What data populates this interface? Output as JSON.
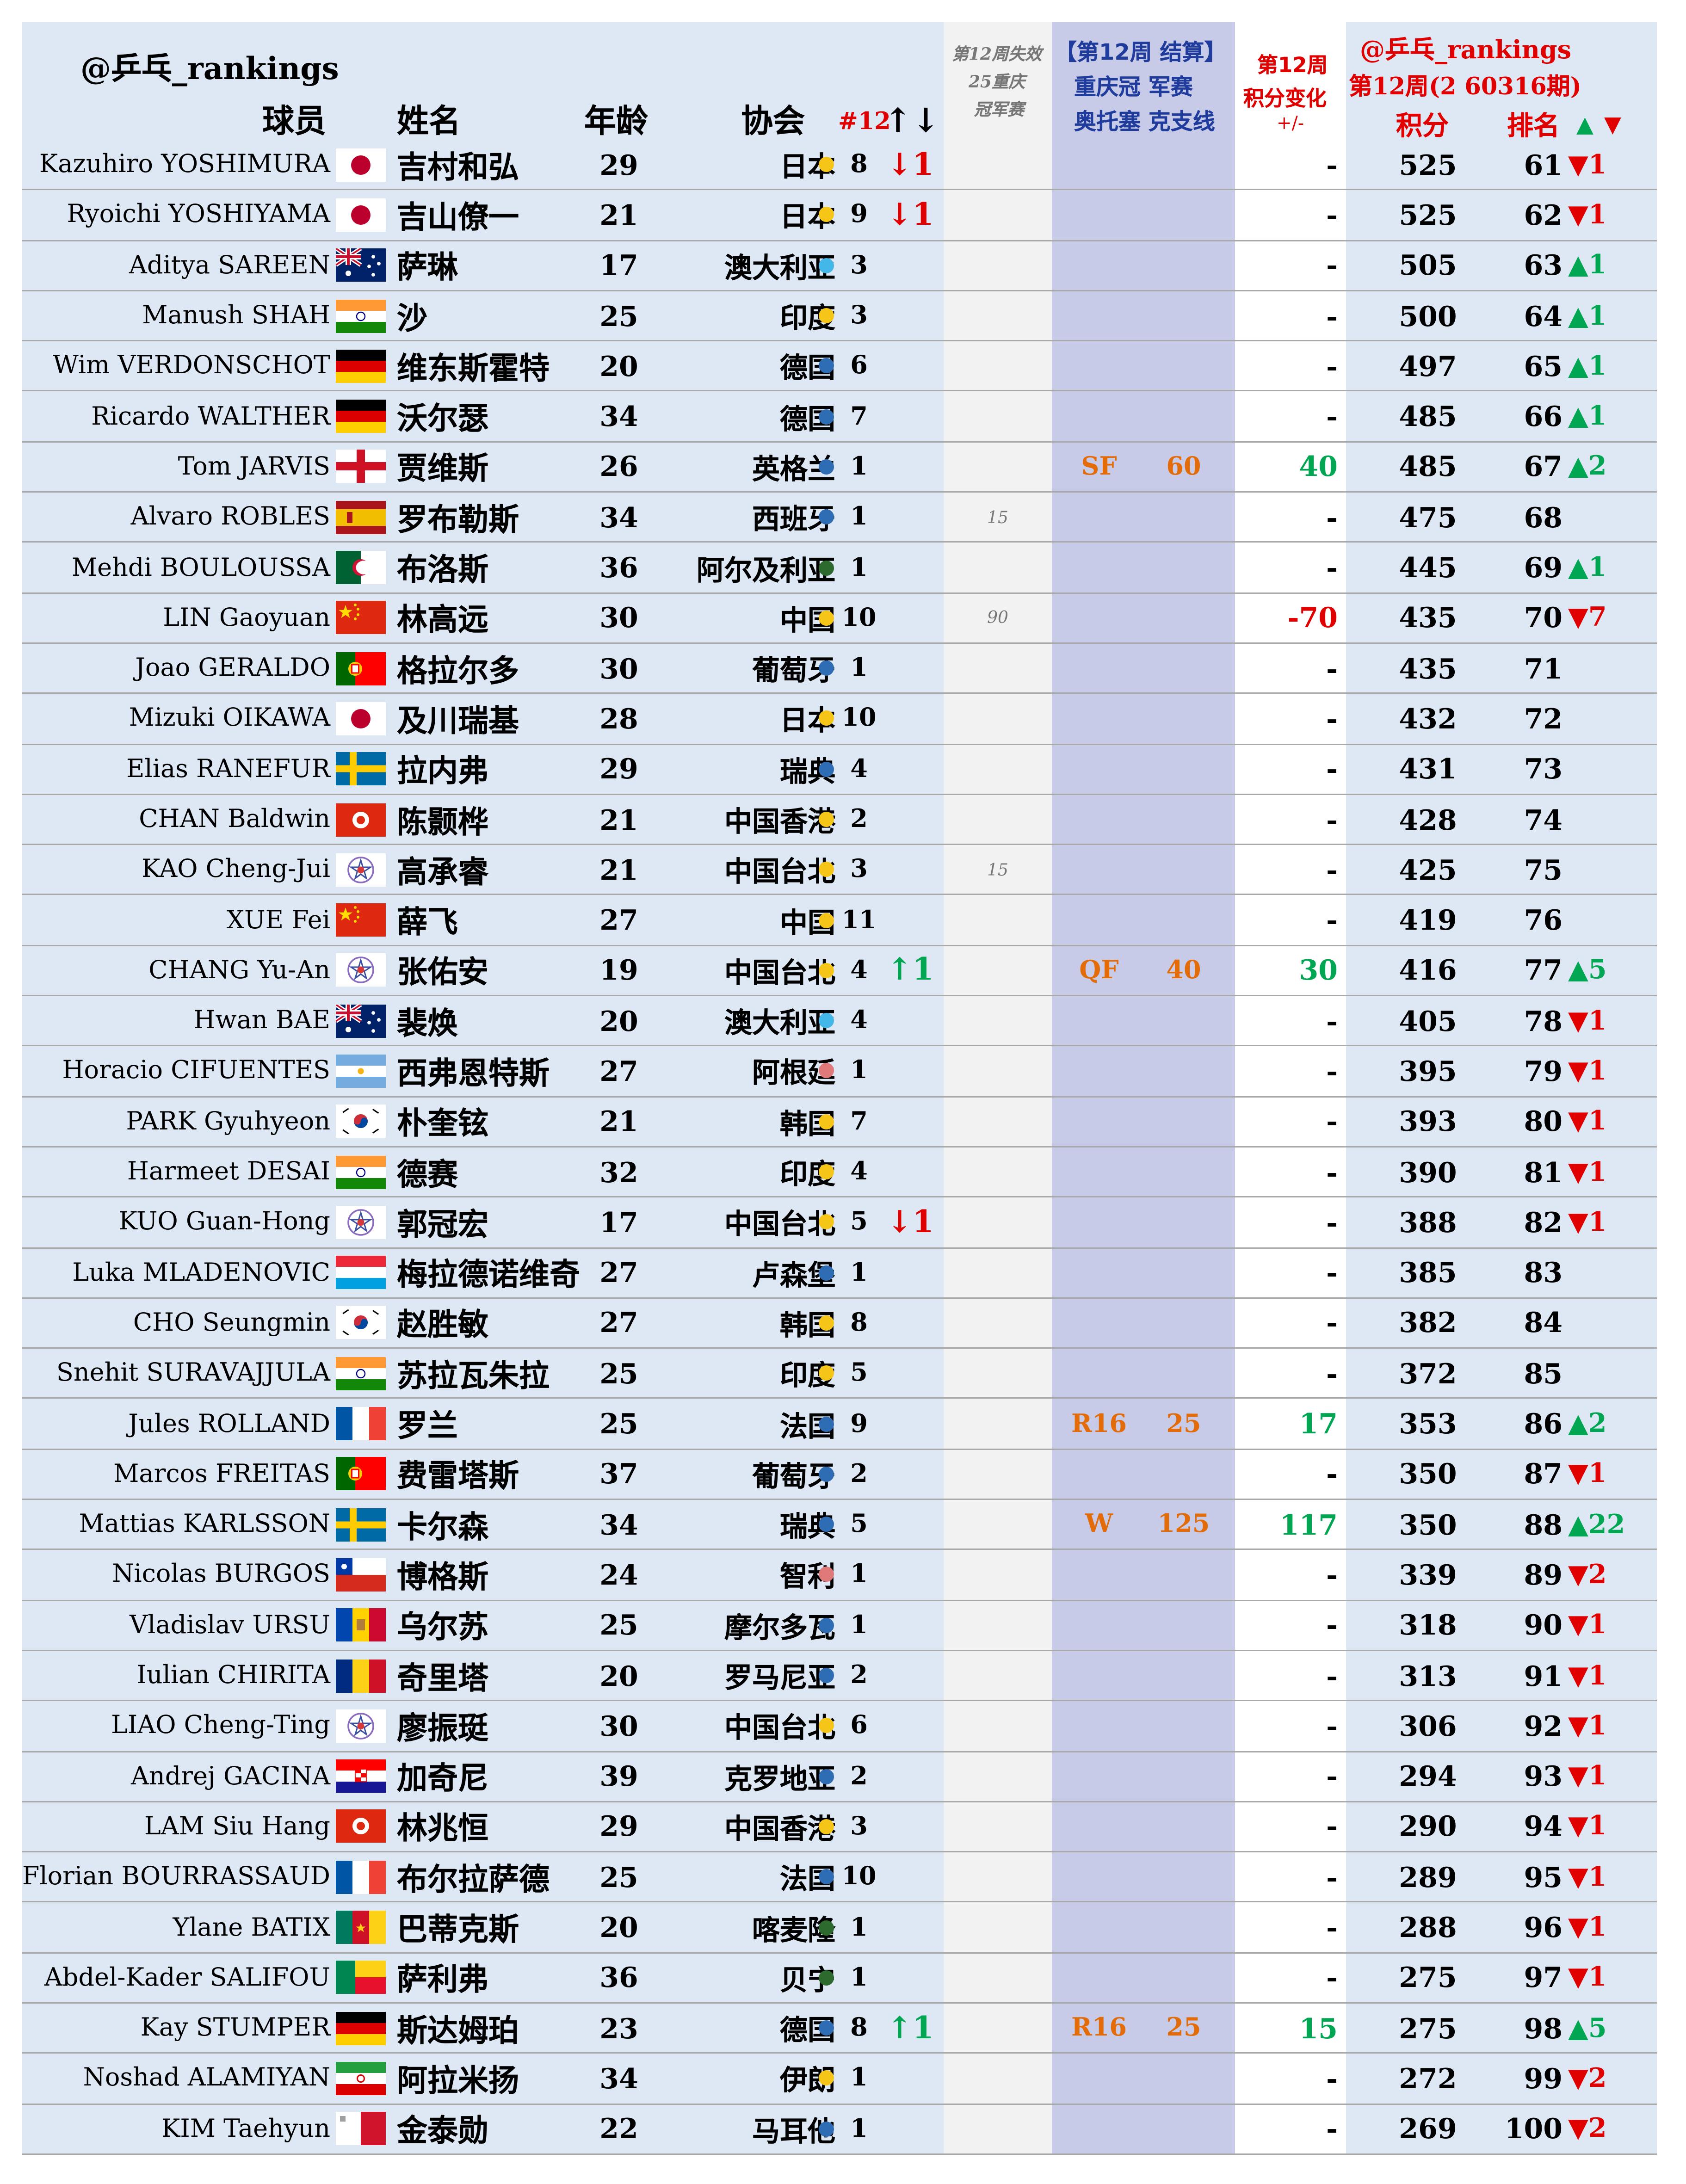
{
  "header": {
    "handle": "@乒乓_rankings",
    "col_player": "球员",
    "col_name": "姓名",
    "col_age": "年龄",
    "col_assoc": "协会",
    "col_rank12": "#12",
    "col_rank12_arrows": "↑↓",
    "lost_title_1": "第12周失效",
    "lost_title_2": "25重庆",
    "lost_title_3": "冠军赛",
    "result_title_1": "【第12周 结算】",
    "result_title_2": "重庆冠 军赛",
    "result_title_3": "奥托塞 克支线",
    "change_title_1": "第12周",
    "change_title_2": "积分变化",
    "change_title_3": "+/-",
    "right_handle": "@乒乓_rankings",
    "right_week": "第12周(2 60316期)",
    "col_points": "积分",
    "col_rank": "排名",
    "col_rank_arrows": "▲ ▼"
  },
  "colors": {
    "up": "#00a651",
    "down": "#e00000",
    "orange": "#e36c09",
    "blue_text": "#1f3c9c",
    "red_text": "#e00000",
    "dot_yellow": "#f5c518",
    "dot_blue": "#2e6db4",
    "dot_lightblue": "#43b8e8",
    "dot_green": "#2d6a2d",
    "dot_pink": "#e07a7a"
  },
  "rows": [
    {
      "en": "Kazuhiro YOSHIMURA",
      "flag": "jp",
      "cn": "吉村和弘",
      "age": "29",
      "assoc": "日本",
      "dot": "yellow",
      "n": "8",
      "mv": "↓1",
      "mvdir": "down",
      "lost": "",
      "round": "",
      "pts": "",
      "chg": "-",
      "chgdir": "",
      "score": "525",
      "rank": "61",
      "rmv": "▼1",
      "rmvdir": "down"
    },
    {
      "en": "Ryoichi YOSHIYAMA",
      "flag": "jp",
      "cn": "吉山僚一",
      "age": "21",
      "assoc": "日本",
      "dot": "yellow",
      "n": "9",
      "mv": "↓1",
      "mvdir": "down",
      "lost": "",
      "round": "",
      "pts": "",
      "chg": "-",
      "chgdir": "",
      "score": "525",
      "rank": "62",
      "rmv": "▼1",
      "rmvdir": "down"
    },
    {
      "en": "Aditya SAREEN",
      "flag": "au",
      "cn": "萨琳",
      "age": "17",
      "assoc": "澳大利亚",
      "dot": "lightblue",
      "n": "3",
      "mv": "",
      "mvdir": "",
      "lost": "",
      "round": "",
      "pts": "",
      "chg": "-",
      "chgdir": "",
      "score": "505",
      "rank": "63",
      "rmv": "▲1",
      "rmvdir": "up"
    },
    {
      "en": "Manush SHAH",
      "flag": "in",
      "cn": "沙",
      "age": "25",
      "assoc": "印度",
      "dot": "yellow",
      "n": "3",
      "mv": "",
      "mvdir": "",
      "lost": "",
      "round": "",
      "pts": "",
      "chg": "-",
      "chgdir": "",
      "score": "500",
      "rank": "64",
      "rmv": "▲1",
      "rmvdir": "up"
    },
    {
      "en": "Wim VERDONSCHOT",
      "flag": "de",
      "cn": "维东斯霍特",
      "age": "20",
      "assoc": "德国",
      "dot": "blue",
      "n": "6",
      "mv": "",
      "mvdir": "",
      "lost": "",
      "round": "",
      "pts": "",
      "chg": "-",
      "chgdir": "",
      "score": "497",
      "rank": "65",
      "rmv": "▲1",
      "rmvdir": "up"
    },
    {
      "en": "Ricardo WALTHER",
      "flag": "de",
      "cn": "沃尔瑟",
      "age": "34",
      "assoc": "德国",
      "dot": "blue",
      "n": "7",
      "mv": "",
      "mvdir": "",
      "lost": "",
      "round": "",
      "pts": "",
      "chg": "-",
      "chgdir": "",
      "score": "485",
      "rank": "66",
      "rmv": "▲1",
      "rmvdir": "up"
    },
    {
      "en": "Tom JARVIS",
      "flag": "en",
      "cn": "贾维斯",
      "age": "26",
      "assoc": "英格兰",
      "dot": "blue",
      "n": "1",
      "mv": "",
      "mvdir": "",
      "lost": "",
      "round": "SF",
      "pts": "60",
      "chg": "40",
      "chgdir": "up",
      "score": "485",
      "rank": "67",
      "rmv": "▲2",
      "rmvdir": "up"
    },
    {
      "en": "Alvaro ROBLES",
      "flag": "es",
      "cn": "罗布勒斯",
      "age": "34",
      "assoc": "西班牙",
      "dot": "blue",
      "n": "1",
      "mv": "",
      "mvdir": "",
      "lost": "15",
      "round": "",
      "pts": "",
      "chg": "-",
      "chgdir": "",
      "score": "475",
      "rank": "68",
      "rmv": "",
      "rmvdir": ""
    },
    {
      "en": "Mehdi BOULOUSSA",
      "flag": "dz",
      "cn": "布洛斯",
      "age": "36",
      "assoc": "阿尔及利亚",
      "dot": "green",
      "n": "1",
      "mv": "",
      "mvdir": "",
      "lost": "",
      "round": "",
      "pts": "",
      "chg": "-",
      "chgdir": "",
      "score": "445",
      "rank": "69",
      "rmv": "▲1",
      "rmvdir": "up"
    },
    {
      "en": "LIN Gaoyuan",
      "flag": "cn",
      "cn": "林高远",
      "age": "30",
      "assoc": "中国",
      "dot": "yellow",
      "n": "10",
      "mv": "",
      "mvdir": "",
      "lost": "90",
      "round": "",
      "pts": "",
      "chg": "-70",
      "chgdir": "down",
      "score": "435",
      "rank": "70",
      "rmv": "▼7",
      "rmvdir": "down"
    },
    {
      "en": "Joao GERALDO",
      "flag": "pt",
      "cn": "格拉尔多",
      "age": "30",
      "assoc": "葡萄牙",
      "dot": "blue",
      "n": "1",
      "mv": "",
      "mvdir": "",
      "lost": "",
      "round": "",
      "pts": "",
      "chg": "-",
      "chgdir": "",
      "score": "435",
      "rank": "71",
      "rmv": "",
      "rmvdir": ""
    },
    {
      "en": "Mizuki OIKAWA",
      "flag": "jp",
      "cn": "及川瑞基",
      "age": "28",
      "assoc": "日本",
      "dot": "yellow",
      "n": "10",
      "mv": "",
      "mvdir": "",
      "lost": "",
      "round": "",
      "pts": "",
      "chg": "-",
      "chgdir": "",
      "score": "432",
      "rank": "72",
      "rmv": "",
      "rmvdir": ""
    },
    {
      "en": "Elias RANEFUR",
      "flag": "se",
      "cn": "拉内弗",
      "age": "29",
      "assoc": "瑞典",
      "dot": "blue",
      "n": "4",
      "mv": "",
      "mvdir": "",
      "lost": "",
      "round": "",
      "pts": "",
      "chg": "-",
      "chgdir": "",
      "score": "431",
      "rank": "73",
      "rmv": "",
      "rmvdir": ""
    },
    {
      "en": "CHAN Baldwin",
      "flag": "hk",
      "cn": "陈颢桦",
      "age": "21",
      "assoc": "中国香港",
      "dot": "yellow",
      "n": "2",
      "mv": "",
      "mvdir": "",
      "lost": "",
      "round": "",
      "pts": "",
      "chg": "-",
      "chgdir": "",
      "score": "428",
      "rank": "74",
      "rmv": "",
      "rmvdir": ""
    },
    {
      "en": "KAO Cheng-Jui",
      "flag": "tpe",
      "cn": "高承睿",
      "age": "21",
      "assoc": "中国台北",
      "dot": "yellow",
      "n": "3",
      "mv": "",
      "mvdir": "",
      "lost": "15",
      "round": "",
      "pts": "",
      "chg": "-",
      "chgdir": "",
      "score": "425",
      "rank": "75",
      "rmv": "",
      "rmvdir": ""
    },
    {
      "en": "XUE Fei",
      "flag": "cn",
      "cn": "薛飞",
      "age": "27",
      "assoc": "中国",
      "dot": "yellow",
      "n": "11",
      "mv": "",
      "mvdir": "",
      "lost": "",
      "round": "",
      "pts": "",
      "chg": "-",
      "chgdir": "",
      "score": "419",
      "rank": "76",
      "rmv": "",
      "rmvdir": ""
    },
    {
      "en": "CHANG Yu-An",
      "flag": "tpe",
      "cn": "张佑安",
      "age": "19",
      "assoc": "中国台北",
      "dot": "yellow",
      "n": "4",
      "mv": "↑1",
      "mvdir": "up",
      "lost": "",
      "round": "QF",
      "pts": "40",
      "chg": "30",
      "chgdir": "up",
      "score": "416",
      "rank": "77",
      "rmv": "▲5",
      "rmvdir": "up"
    },
    {
      "en": "Hwan BAE",
      "flag": "au",
      "cn": "裴焕",
      "age": "20",
      "assoc": "澳大利亚",
      "dot": "lightblue",
      "n": "4",
      "mv": "",
      "mvdir": "",
      "lost": "",
      "round": "",
      "pts": "",
      "chg": "-",
      "chgdir": "",
      "score": "405",
      "rank": "78",
      "rmv": "▼1",
      "rmvdir": "down"
    },
    {
      "en": "Horacio CIFUENTES",
      "flag": "ar",
      "cn": "西弗恩特斯",
      "age": "27",
      "assoc": "阿根廷",
      "dot": "pink",
      "n": "1",
      "mv": "",
      "mvdir": "",
      "lost": "",
      "round": "",
      "pts": "",
      "chg": "-",
      "chgdir": "",
      "score": "395",
      "rank": "79",
      "rmv": "▼1",
      "rmvdir": "down"
    },
    {
      "en": "PARK Gyuhyeon",
      "flag": "kr",
      "cn": "朴奎铉",
      "age": "21",
      "assoc": "韩国",
      "dot": "yellow",
      "n": "7",
      "mv": "",
      "mvdir": "",
      "lost": "",
      "round": "",
      "pts": "",
      "chg": "-",
      "chgdir": "",
      "score": "393",
      "rank": "80",
      "rmv": "▼1",
      "rmvdir": "down"
    },
    {
      "en": "Harmeet DESAI",
      "flag": "in",
      "cn": "德赛",
      "age": "32",
      "assoc": "印度",
      "dot": "yellow",
      "n": "4",
      "mv": "",
      "mvdir": "",
      "lost": "",
      "round": "",
      "pts": "",
      "chg": "-",
      "chgdir": "",
      "score": "390",
      "rank": "81",
      "rmv": "▼1",
      "rmvdir": "down"
    },
    {
      "en": "KUO Guan-Hong",
      "flag": "tpe",
      "cn": "郭冠宏",
      "age": "17",
      "assoc": "中国台北",
      "dot": "yellow",
      "n": "5",
      "mv": "↓1",
      "mvdir": "down",
      "lost": "",
      "round": "",
      "pts": "",
      "chg": "-",
      "chgdir": "",
      "score": "388",
      "rank": "82",
      "rmv": "▼1",
      "rmvdir": "down"
    },
    {
      "en": "Luka MLADENOVIC",
      "flag": "lu",
      "cn": "梅拉德诺维奇",
      "age": "27",
      "assoc": "卢森堡",
      "dot": "blue",
      "n": "1",
      "mv": "",
      "mvdir": "",
      "lost": "",
      "round": "",
      "pts": "",
      "chg": "-",
      "chgdir": "",
      "score": "385",
      "rank": "83",
      "rmv": "",
      "rmvdir": ""
    },
    {
      "en": "CHO Seungmin",
      "flag": "kr",
      "cn": "赵胜敏",
      "age": "27",
      "assoc": "韩国",
      "dot": "yellow",
      "n": "8",
      "mv": "",
      "mvdir": "",
      "lost": "",
      "round": "",
      "pts": "",
      "chg": "-",
      "chgdir": "",
      "score": "382",
      "rank": "84",
      "rmv": "",
      "rmvdir": ""
    },
    {
      "en": "Snehit SURAVAJJULA",
      "flag": "in",
      "cn": "苏拉瓦朱拉",
      "age": "25",
      "assoc": "印度",
      "dot": "yellow",
      "n": "5",
      "mv": "",
      "mvdir": "",
      "lost": "",
      "round": "",
      "pts": "",
      "chg": "-",
      "chgdir": "",
      "score": "372",
      "rank": "85",
      "rmv": "",
      "rmvdir": ""
    },
    {
      "en": "Jules ROLLAND",
      "flag": "fr",
      "cn": "罗兰",
      "age": "25",
      "assoc": "法国",
      "dot": "blue",
      "n": "9",
      "mv": "",
      "mvdir": "",
      "lost": "",
      "round": "R16",
      "pts": "25",
      "chg": "17",
      "chgdir": "up",
      "score": "353",
      "rank": "86",
      "rmv": "▲2",
      "rmvdir": "up"
    },
    {
      "en": "Marcos FREITAS",
      "flag": "pt",
      "cn": "费雷塔斯",
      "age": "37",
      "assoc": "葡萄牙",
      "dot": "blue",
      "n": "2",
      "mv": "",
      "mvdir": "",
      "lost": "",
      "round": "",
      "pts": "",
      "chg": "-",
      "chgdir": "",
      "score": "350",
      "rank": "87",
      "rmv": "▼1",
      "rmvdir": "down"
    },
    {
      "en": "Mattias KARLSSON",
      "flag": "se",
      "cn": "卡尔森",
      "age": "34",
      "assoc": "瑞典",
      "dot": "blue",
      "n": "5",
      "mv": "",
      "mvdir": "",
      "lost": "",
      "round": "W",
      "pts": "125",
      "chg": "117",
      "chgdir": "up",
      "score": "350",
      "rank": "88",
      "rmv": "▲22",
      "rmvdir": "up"
    },
    {
      "en": "Nicolas BURGOS",
      "flag": "cl",
      "cn": "博格斯",
      "age": "24",
      "assoc": "智利",
      "dot": "pink",
      "n": "1",
      "mv": "",
      "mvdir": "",
      "lost": "",
      "round": "",
      "pts": "",
      "chg": "-",
      "chgdir": "",
      "score": "339",
      "rank": "89",
      "rmv": "▼2",
      "rmvdir": "down"
    },
    {
      "en": "Vladislav URSU",
      "flag": "md",
      "cn": "乌尔苏",
      "age": "25",
      "assoc": "摩尔多瓦",
      "dot": "blue",
      "n": "1",
      "mv": "",
      "mvdir": "",
      "lost": "",
      "round": "",
      "pts": "",
      "chg": "-",
      "chgdir": "",
      "score": "318",
      "rank": "90",
      "rmv": "▼1",
      "rmvdir": "down"
    },
    {
      "en": "Iulian CHIRITA",
      "flag": "ro",
      "cn": "奇里塔",
      "age": "20",
      "assoc": "罗马尼亚",
      "dot": "blue",
      "n": "2",
      "mv": "",
      "mvdir": "",
      "lost": "",
      "round": "",
      "pts": "",
      "chg": "-",
      "chgdir": "",
      "score": "313",
      "rank": "91",
      "rmv": "▼1",
      "rmvdir": "down"
    },
    {
      "en": "LIAO Cheng-Ting",
      "flag": "tpe",
      "cn": "廖振珽",
      "age": "30",
      "assoc": "中国台北",
      "dot": "yellow",
      "n": "6",
      "mv": "",
      "mvdir": "",
      "lost": "",
      "round": "",
      "pts": "",
      "chg": "-",
      "chgdir": "",
      "score": "306",
      "rank": "92",
      "rmv": "▼1",
      "rmvdir": "down"
    },
    {
      "en": "Andrej GACINA",
      "flag": "hr",
      "cn": "加奇尼",
      "age": "39",
      "assoc": "克罗地亚",
      "dot": "blue",
      "n": "2",
      "mv": "",
      "mvdir": "",
      "lost": "",
      "round": "",
      "pts": "",
      "chg": "-",
      "chgdir": "",
      "score": "294",
      "rank": "93",
      "rmv": "▼1",
      "rmvdir": "down"
    },
    {
      "en": "LAM Siu Hang",
      "flag": "hk",
      "cn": "林兆恒",
      "age": "29",
      "assoc": "中国香港",
      "dot": "yellow",
      "n": "3",
      "mv": "",
      "mvdir": "",
      "lost": "",
      "round": "",
      "pts": "",
      "chg": "-",
      "chgdir": "",
      "score": "290",
      "rank": "94",
      "rmv": "▼1",
      "rmvdir": "down"
    },
    {
      "en": "Florian BOURRASSAUD",
      "flag": "fr",
      "cn": "布尔拉萨德",
      "age": "25",
      "assoc": "法国",
      "dot": "blue",
      "n": "10",
      "mv": "",
      "mvdir": "",
      "lost": "",
      "round": "",
      "pts": "",
      "chg": "-",
      "chgdir": "",
      "score": "289",
      "rank": "95",
      "rmv": "▼1",
      "rmvdir": "down"
    },
    {
      "en": "Ylane BATIX",
      "flag": "cm",
      "cn": "巴蒂克斯",
      "age": "20",
      "assoc": "喀麦隆",
      "dot": "green",
      "n": "1",
      "mv": "",
      "mvdir": "",
      "lost": "",
      "round": "",
      "pts": "",
      "chg": "-",
      "chgdir": "",
      "score": "288",
      "rank": "96",
      "rmv": "▼1",
      "rmvdir": "down"
    },
    {
      "en": "Abdel-Kader SALIFOU",
      "flag": "bj",
      "cn": "萨利弗",
      "age": "36",
      "assoc": "贝宁",
      "dot": "green",
      "n": "1",
      "mv": "",
      "mvdir": "",
      "lost": "",
      "round": "",
      "pts": "",
      "chg": "-",
      "chgdir": "",
      "score": "275",
      "rank": "97",
      "rmv": "▼1",
      "rmvdir": "down"
    },
    {
      "en": "Kay STUMPER",
      "flag": "de",
      "cn": "斯达姆珀",
      "age": "23",
      "assoc": "德国",
      "dot": "blue",
      "n": "8",
      "mv": "↑1",
      "mvdir": "up",
      "lost": "",
      "round": "R16",
      "pts": "25",
      "chg": "15",
      "chgdir": "up",
      "score": "275",
      "rank": "98",
      "rmv": "▲5",
      "rmvdir": "up"
    },
    {
      "en": "Noshad ALAMIYAN",
      "flag": "ir",
      "cn": "阿拉米扬",
      "age": "34",
      "assoc": "伊朗",
      "dot": "yellow",
      "n": "1",
      "mv": "",
      "mvdir": "",
      "lost": "",
      "round": "",
      "pts": "",
      "chg": "-",
      "chgdir": "",
      "score": "272",
      "rank": "99",
      "rmv": "▼2",
      "rmvdir": "down"
    },
    {
      "en": "KIM Taehyun",
      "flag": "mt",
      "cn": "金泰勋",
      "age": "22",
      "assoc": "马耳他",
      "dot": "blue",
      "n": "1",
      "mv": "",
      "mvdir": "",
      "lost": "",
      "round": "",
      "pts": "",
      "chg": "-",
      "chgdir": "",
      "score": "269",
      "rank": "100",
      "rmv": "▼2",
      "rmvdir": "down"
    }
  ]
}
